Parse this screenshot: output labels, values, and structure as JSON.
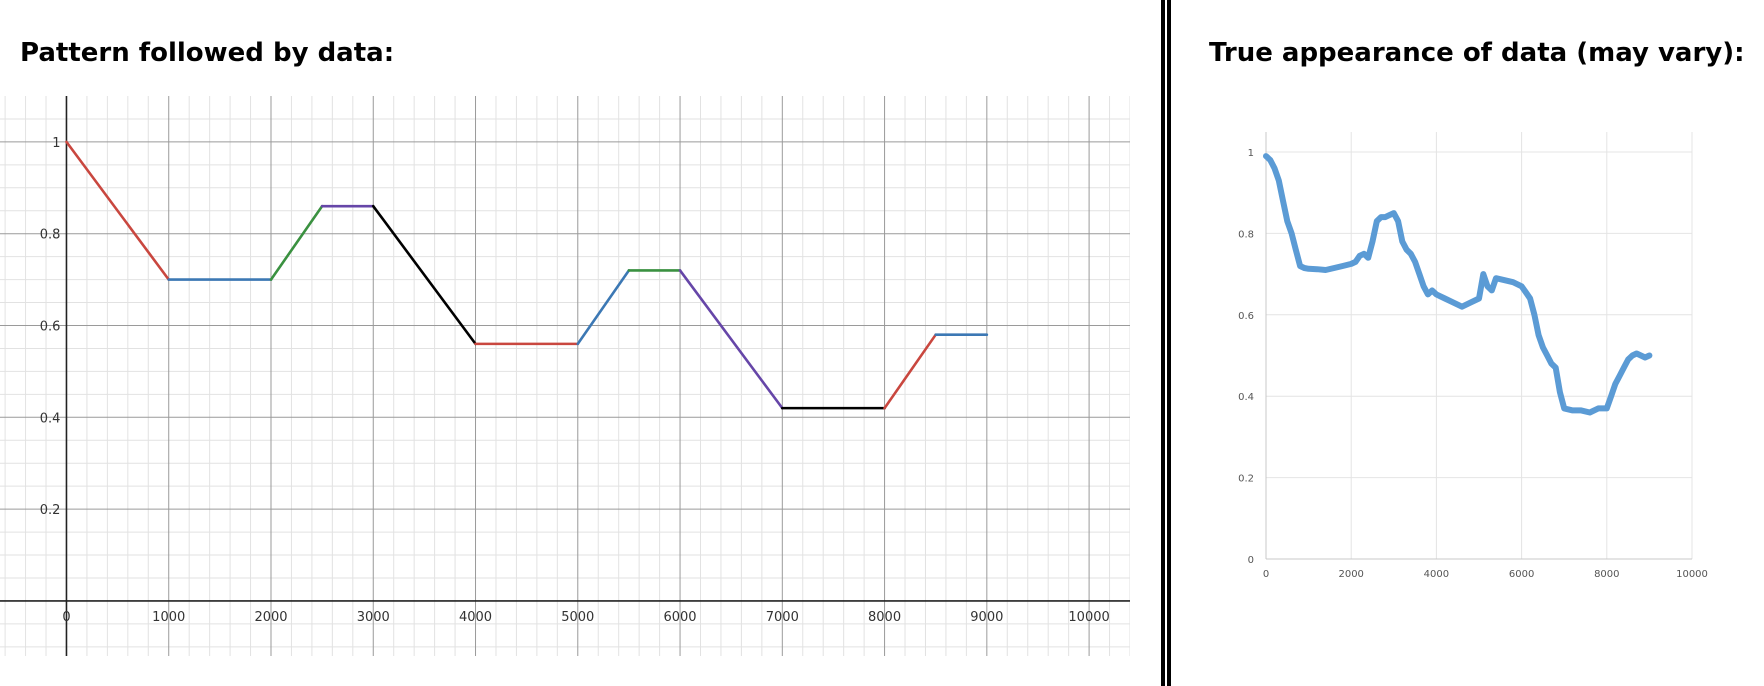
{
  "left_panel": {
    "title": "Pattern followed by data:"
  },
  "right_panel": {
    "title": "True appearance of data (may vary):"
  },
  "chart_data": [
    {
      "type": "line",
      "title": "Pattern followed by data:",
      "xlim": [
        -650,
        10400
      ],
      "ylim": [
        -0.12,
        1.1
      ],
      "x_ticks": [
        0,
        1000,
        2000,
        3000,
        4000,
        5000,
        6000,
        7000,
        8000,
        9000,
        10000
      ],
      "x_tick_labels": [
        "0",
        "1000",
        "2000",
        "3000",
        "4000",
        "5000",
        "6000",
        "7000",
        "8000",
        "9000",
        "10000"
      ],
      "y_ticks": [
        0.2,
        0.4,
        0.6,
        0.8,
        1
      ],
      "y_tick_labels": [
        "0.2",
        "0.4",
        "0.6",
        "0.8",
        "1"
      ],
      "grid": true,
      "segments": [
        {
          "x": [
            0,
            1000
          ],
          "y": [
            1.0,
            0.7
          ],
          "color": "#c9473f"
        },
        {
          "x": [
            1000,
            2000
          ],
          "y": [
            0.7,
            0.7
          ],
          "color": "#3c78b4"
        },
        {
          "x": [
            2000,
            2500
          ],
          "y": [
            0.7,
            0.86
          ],
          "color": "#3a9140"
        },
        {
          "x": [
            2500,
            3000
          ],
          "y": [
            0.86,
            0.86
          ],
          "color": "#6646a8"
        },
        {
          "x": [
            3000,
            4000
          ],
          "y": [
            0.86,
            0.56
          ],
          "color": "#000000"
        },
        {
          "x": [
            4000,
            5000
          ],
          "y": [
            0.56,
            0.56
          ],
          "color": "#c9473f"
        },
        {
          "x": [
            5000,
            5500
          ],
          "y": [
            0.56,
            0.72
          ],
          "color": "#3c78b4"
        },
        {
          "x": [
            5500,
            6000
          ],
          "y": [
            0.72,
            0.72
          ],
          "color": "#3a9140"
        },
        {
          "x": [
            6000,
            7000
          ],
          "y": [
            0.72,
            0.42
          ],
          "color": "#6646a8"
        },
        {
          "x": [
            7000,
            8000
          ],
          "y": [
            0.42,
            0.42
          ],
          "color": "#000000"
        },
        {
          "x": [
            8000,
            8500
          ],
          "y": [
            0.42,
            0.58
          ],
          "color": "#c9473f"
        },
        {
          "x": [
            8500,
            9000
          ],
          "y": [
            0.58,
            0.58
          ],
          "color": "#3c78b4"
        }
      ]
    },
    {
      "type": "line",
      "title": "True appearance of data (may vary):",
      "xlim": [
        0,
        10000
      ],
      "ylim": [
        0,
        1.0
      ],
      "x_ticks": [
        0,
        2000,
        4000,
        6000,
        8000,
        10000
      ],
      "x_tick_labels": [
        "0",
        "2000",
        "4000",
        "6000",
        "8000",
        "10000"
      ],
      "y_ticks": [
        0,
        0.2,
        0.4,
        0.6,
        0.8,
        1
      ],
      "y_tick_labels": [
        "0",
        "0.2",
        "0.4",
        "0.6",
        "0.8",
        "1"
      ],
      "grid": true,
      "series": [
        {
          "color": "#5b9bd5",
          "x": [
            0,
            100,
            200,
            300,
            400,
            500,
            600,
            700,
            800,
            900,
            1000,
            1200,
            1400,
            1600,
            1800,
            2000,
            2100,
            2200,
            2300,
            2400,
            2500,
            2600,
            2700,
            2800,
            2900,
            3000,
            3100,
            3200,
            3300,
            3400,
            3500,
            3600,
            3700,
            3800,
            3900,
            4000,
            4200,
            4400,
            4600,
            4800,
            5000,
            5100,
            5200,
            5300,
            5400,
            5600,
            5800,
            6000,
            6100,
            6200,
            6300,
            6400,
            6500,
            6600,
            6700,
            6800,
            6900,
            7000,
            7200,
            7400,
            7600,
            7800,
            8000,
            8100,
            8200,
            8300,
            8400,
            8500,
            8600,
            8700,
            8800,
            8900,
            9000
          ],
          "y": [
            0.99,
            0.98,
            0.96,
            0.93,
            0.88,
            0.83,
            0.8,
            0.76,
            0.72,
            0.715,
            0.713,
            0.712,
            0.71,
            0.715,
            0.72,
            0.725,
            0.73,
            0.745,
            0.75,
            0.74,
            0.78,
            0.83,
            0.84,
            0.84,
            0.845,
            0.85,
            0.83,
            0.78,
            0.76,
            0.75,
            0.73,
            0.7,
            0.67,
            0.65,
            0.66,
            0.65,
            0.64,
            0.63,
            0.62,
            0.63,
            0.64,
            0.7,
            0.67,
            0.66,
            0.69,
            0.685,
            0.68,
            0.67,
            0.655,
            0.64,
            0.6,
            0.55,
            0.52,
            0.5,
            0.48,
            0.47,
            0.41,
            0.37,
            0.365,
            0.365,
            0.36,
            0.37,
            0.37,
            0.4,
            0.43,
            0.45,
            0.47,
            0.49,
            0.5,
            0.505,
            0.5,
            0.495,
            0.5
          ]
        }
      ]
    }
  ]
}
